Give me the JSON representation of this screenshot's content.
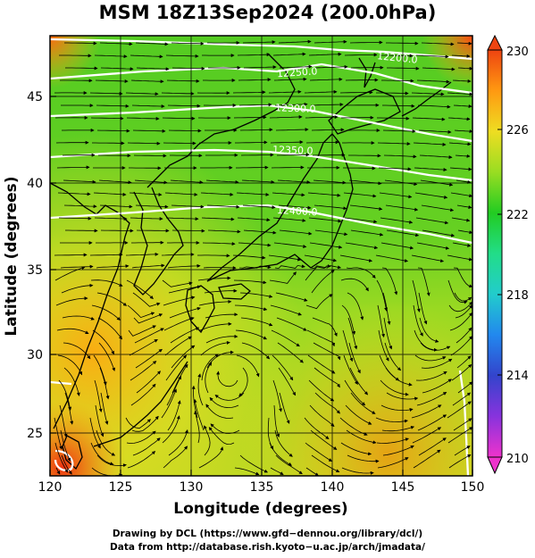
{
  "title": "MSM 18Z13Sep2024 (200.0hPa)",
  "map": {
    "xlabel": "Longitude (degrees)",
    "ylabel": "Latitude  (degrees)",
    "x_ticks": [
      "120",
      "125",
      "130",
      "135",
      "140",
      "145",
      "150"
    ],
    "y_ticks": [
      "25",
      "30",
      "35",
      "40",
      "45"
    ],
    "lon_range": [
      120,
      150
    ],
    "lat_range": [
      22.5,
      47.6
    ],
    "grid": true,
    "contour_labels": [
      "12400.0",
      "12350.0",
      "12300.0",
      "12250.0",
      "12200.0"
    ],
    "field": "temperature shading with wind streamlines",
    "colors": {
      "land_outline": "#000000",
      "contour": "#ffffff",
      "streamline": "#000000"
    }
  },
  "colorbar": {
    "ticks": [
      "230",
      "226",
      "222",
      "218",
      "214",
      "210"
    ],
    "min": 210,
    "max": 230,
    "stops": [
      "#ee33cc",
      "#8833dd",
      "#3344cc",
      "#2288ee",
      "#22cccc",
      "#22dd88",
      "#22cc22",
      "#99dd22",
      "#eedd22",
      "#ff9911",
      "#ee4411"
    ]
  },
  "credits": {
    "line1": "Drawing by DCL (https://www.gfd−dennou.org/library/dcl/)",
    "line2": "Data from http://database.rish.kyoto−u.ac.jp/arch/jmadata/"
  }
}
